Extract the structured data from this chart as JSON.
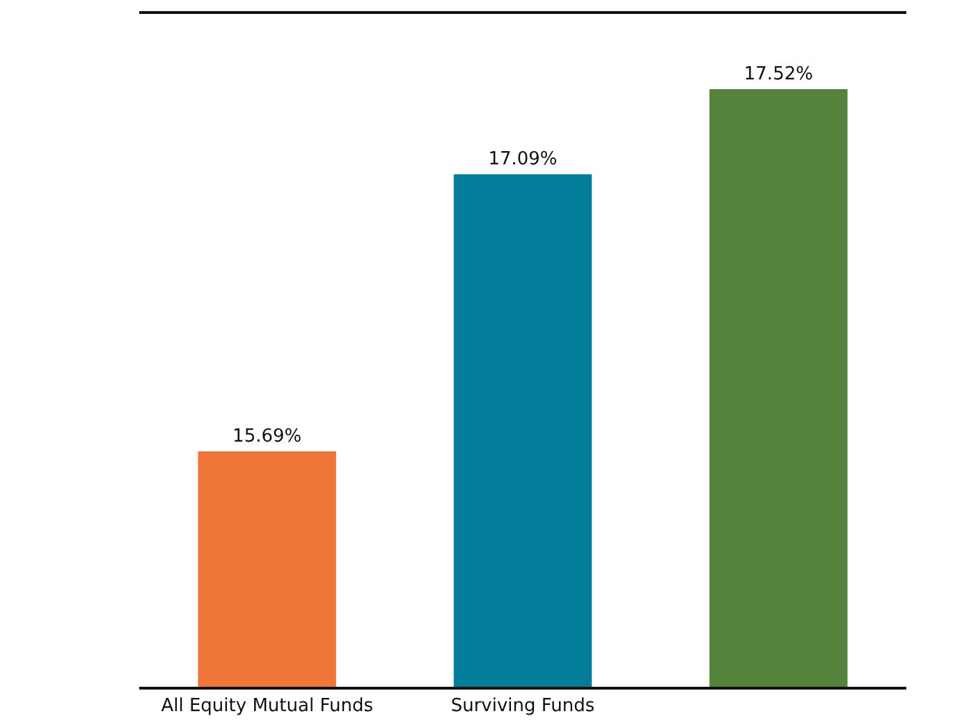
{
  "chart_data": {
    "type": "bar",
    "categories": [
      "All Equity Mutual Funds",
      "Surviving Funds",
      null
    ],
    "values": [
      15.69,
      17.09,
      17.52
    ],
    "colors": [
      "#f07539",
      "#037d99",
      "#56833b"
    ],
    "value_labels": [
      "15.69%",
      "17.09%",
      "17.52%"
    ],
    "ylim": [
      14.5,
      17.9
    ],
    "legend": false
  }
}
